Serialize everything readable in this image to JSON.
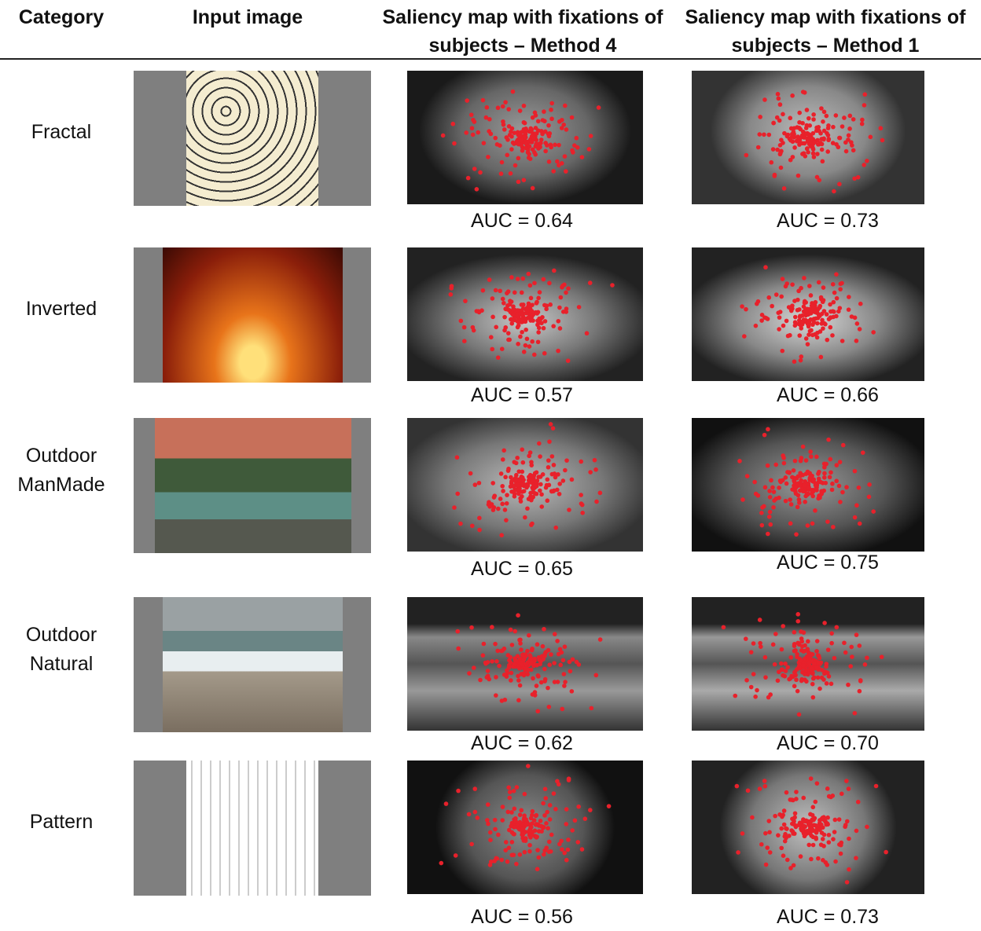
{
  "header": {
    "columns": [
      "Category",
      "Input image",
      "Saliency map with fixations of subjects – Method 4",
      "Saliency map with fixations of subjects – Method 1"
    ]
  },
  "rows": [
    {
      "category": "Fractal",
      "auc_method4": "AUC = 0.64",
      "auc_method1": "AUC = 0.73"
    },
    {
      "category": "Inverted",
      "auc_method4": "AUC = 0.57",
      "auc_method1": "AUC = 0.66"
    },
    {
      "category": "Outdoor ManMade",
      "auc_method4": "AUC = 0.65",
      "auc_method1": "AUC = 0.75"
    },
    {
      "category": "Outdoor Natural",
      "auc_method4": "AUC = 0.62",
      "auc_method1": "AUC = 0.70"
    },
    {
      "category": "Pattern",
      "auc_method4": "AUC = 0.56",
      "auc_method1": "AUC = 0.73"
    }
  ]
}
